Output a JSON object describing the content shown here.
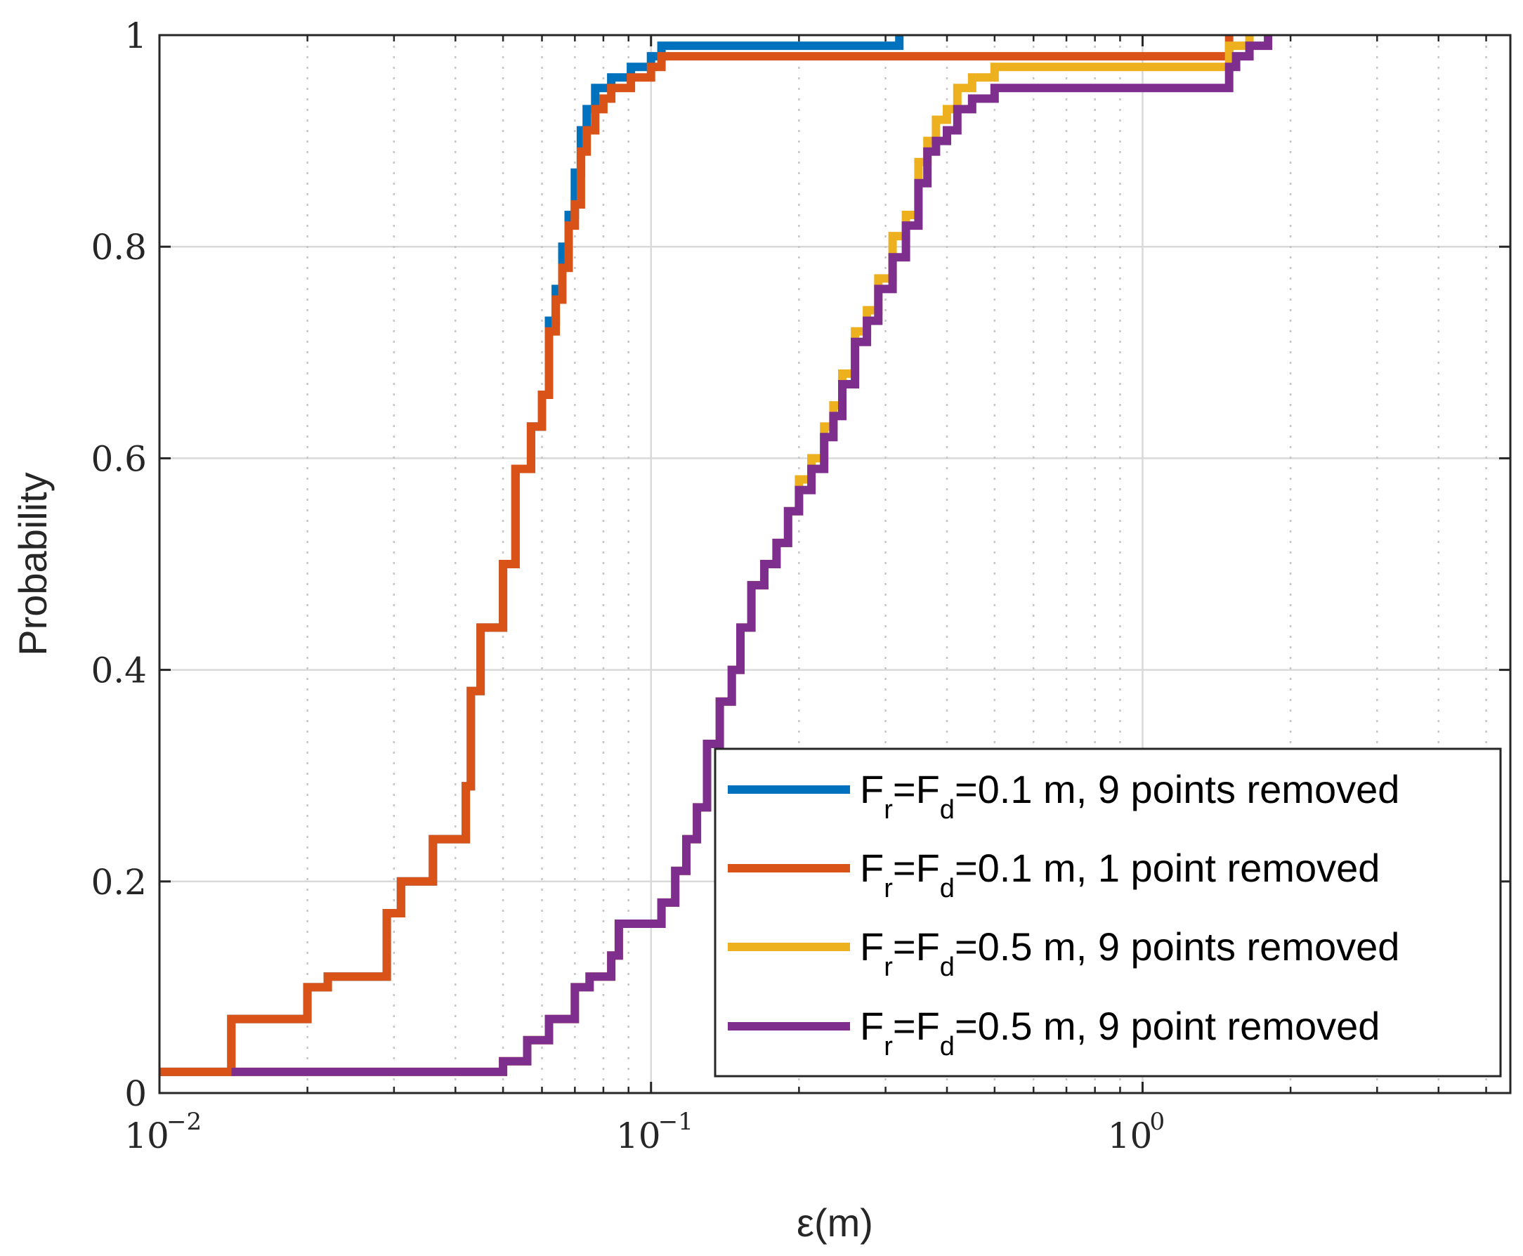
{
  "chart_data": {
    "type": "line",
    "subtype": "empirical-cdf",
    "xscale": "log",
    "xlim": [
      0.01,
      5.6
    ],
    "ylim": [
      0,
      1
    ],
    "xlabel": "ε(m)",
    "ylabel": "Probability",
    "grid": true,
    "minor_grid_x": true,
    "x_ticks": [
      {
        "value": 0.01,
        "base": "10",
        "exponent": "−2"
      },
      {
        "value": 0.1,
        "base": "10",
        "exponent": "−1"
      },
      {
        "value": 1,
        "base": "10",
        "exponent": "0"
      }
    ],
    "y_ticks": [
      {
        "value": 0,
        "label": "0"
      },
      {
        "value": 0.2,
        "label": "0.2"
      },
      {
        "value": 0.4,
        "label": "0.4"
      },
      {
        "value": 0.6,
        "label": "0.6"
      },
      {
        "value": 0.8,
        "label": "0.8"
      },
      {
        "value": 1,
        "label": "1"
      }
    ],
    "legend_position": "bottom-right",
    "series": [
      {
        "name": "Fr=Fd=0.1 m, 9 points removed",
        "label_parts": {
          "a": "F",
          "sub1": "r",
          "b": "=F",
          "sub2": "d",
          "c": "=0.1 m, 9 points removed"
        },
        "color": "#0072BD",
        "x": [
          0.01,
          0.014,
          0.02,
          0.022,
          0.029,
          0.031,
          0.036,
          0.042,
          0.043,
          0.045,
          0.05,
          0.053,
          0.057,
          0.06,
          0.062,
          0.064,
          0.066,
          0.068,
          0.07,
          0.072,
          0.074,
          0.077,
          0.08,
          0.083,
          0.087,
          0.091,
          0.095,
          0.1,
          0.105,
          0.11,
          0.32
        ],
        "y": [
          0.02,
          0.07,
          0.1,
          0.11,
          0.17,
          0.2,
          0.24,
          0.29,
          0.38,
          0.44,
          0.5,
          0.59,
          0.63,
          0.66,
          0.73,
          0.76,
          0.8,
          0.83,
          0.87,
          0.91,
          0.93,
          0.95,
          0.95,
          0.96,
          0.96,
          0.97,
          0.97,
          0.98,
          0.99,
          0.99,
          1.0
        ]
      },
      {
        "name": "Fr=Fd=0.1 m, 1 point removed",
        "label_parts": {
          "a": "F",
          "sub1": "r",
          "b": "=F",
          "sub2": "d",
          "c": "=0.1 m, 1 point removed"
        },
        "color": "#D95319",
        "x": [
          0.01,
          0.014,
          0.02,
          0.022,
          0.029,
          0.031,
          0.036,
          0.042,
          0.043,
          0.045,
          0.05,
          0.053,
          0.057,
          0.06,
          0.062,
          0.064,
          0.066,
          0.068,
          0.07,
          0.072,
          0.074,
          0.077,
          0.08,
          0.083,
          0.087,
          0.091,
          0.095,
          0.1,
          0.105,
          0.11,
          1.5
        ],
        "y": [
          0.02,
          0.07,
          0.1,
          0.11,
          0.17,
          0.2,
          0.24,
          0.29,
          0.38,
          0.44,
          0.5,
          0.59,
          0.63,
          0.66,
          0.72,
          0.75,
          0.78,
          0.82,
          0.84,
          0.89,
          0.91,
          0.93,
          0.94,
          0.95,
          0.95,
          0.96,
          0.96,
          0.97,
          0.98,
          0.98,
          1.0
        ]
      },
      {
        "name": "Fr=Fd=0.5 m, 9 points removed",
        "label_parts": {
          "a": "F",
          "sub1": "r",
          "b": "=F",
          "sub2": "d",
          "c": "=0.5 m, 9 points removed"
        },
        "color": "#EDB120",
        "x": [
          0.014,
          0.05,
          0.056,
          0.062,
          0.065,
          0.07,
          0.075,
          0.083,
          0.086,
          0.105,
          0.112,
          0.118,
          0.124,
          0.13,
          0.138,
          0.146,
          0.152,
          0.16,
          0.17,
          0.18,
          0.19,
          0.2,
          0.212,
          0.225,
          0.235,
          0.245,
          0.26,
          0.275,
          0.29,
          0.31,
          0.33,
          0.35,
          0.365,
          0.38,
          0.4,
          0.42,
          0.45,
          0.5,
          1.5,
          1.55,
          1.65
        ],
        "y": [
          0.02,
          0.03,
          0.05,
          0.07,
          0.07,
          0.1,
          0.11,
          0.13,
          0.16,
          0.18,
          0.21,
          0.24,
          0.27,
          0.33,
          0.37,
          0.4,
          0.44,
          0.48,
          0.5,
          0.52,
          0.55,
          0.58,
          0.6,
          0.63,
          0.65,
          0.68,
          0.72,
          0.74,
          0.77,
          0.81,
          0.83,
          0.88,
          0.9,
          0.92,
          0.93,
          0.95,
          0.96,
          0.97,
          0.99,
          0.99,
          1.0
        ]
      },
      {
        "name": "Fr=Fd=0.5 m, 9 point removed",
        "label_parts": {
          "a": "F",
          "sub1": "r",
          "b": "=F",
          "sub2": "d",
          "c": "=0.5 m, 9 point removed"
        },
        "color": "#7E2F8E",
        "x": [
          0.014,
          0.05,
          0.056,
          0.062,
          0.065,
          0.07,
          0.075,
          0.083,
          0.086,
          0.105,
          0.112,
          0.118,
          0.124,
          0.13,
          0.138,
          0.146,
          0.152,
          0.16,
          0.17,
          0.18,
          0.19,
          0.2,
          0.212,
          0.225,
          0.235,
          0.245,
          0.26,
          0.275,
          0.29,
          0.31,
          0.33,
          0.35,
          0.365,
          0.38,
          0.4,
          0.42,
          0.45,
          0.5,
          1.5,
          1.55,
          1.65,
          1.8
        ],
        "y": [
          0.02,
          0.03,
          0.05,
          0.07,
          0.07,
          0.1,
          0.11,
          0.13,
          0.16,
          0.18,
          0.21,
          0.24,
          0.27,
          0.33,
          0.37,
          0.4,
          0.44,
          0.48,
          0.5,
          0.52,
          0.55,
          0.57,
          0.59,
          0.62,
          0.64,
          0.67,
          0.71,
          0.73,
          0.76,
          0.79,
          0.82,
          0.86,
          0.89,
          0.9,
          0.91,
          0.93,
          0.94,
          0.95,
          0.97,
          0.98,
          0.99,
          1.0
        ]
      }
    ]
  }
}
